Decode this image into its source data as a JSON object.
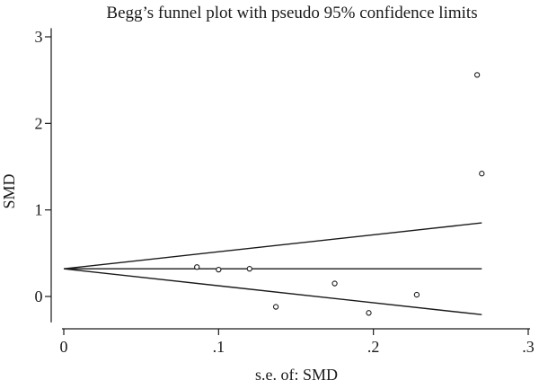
{
  "chart_data": {
    "type": "scatter",
    "title": "Begg’s funnel plot with pseudo 95% confidence limits",
    "xlabel": "s.e. of: SMD",
    "ylabel": "SMD",
    "xlim": [
      0,
      0.3
    ],
    "ylim": [
      -0.3,
      3.1
    ],
    "x_ticks": [
      0,
      0.1,
      0.2,
      0.3
    ],
    "x_tick_labels": [
      "0",
      ".1",
      ".2",
      ".3"
    ],
    "y_ticks": [
      0,
      1,
      2,
      3
    ],
    "y_tick_labels": [
      "0",
      "1",
      "2",
      "3"
    ],
    "grid": false,
    "pooled_estimate": 0.32,
    "pseudo_ci": {
      "x_start": 0,
      "x_end": 0.27,
      "upper_end": 0.85,
      "lower_end": -0.21
    },
    "points": [
      {
        "x": 0.086,
        "y": 0.34
      },
      {
        "x": 0.1,
        "y": 0.31
      },
      {
        "x": 0.12,
        "y": 0.32
      },
      {
        "x": 0.137,
        "y": -0.12
      },
      {
        "x": 0.175,
        "y": 0.15
      },
      {
        "x": 0.197,
        "y": -0.19
      },
      {
        "x": 0.228,
        "y": 0.02
      },
      {
        "x": 0.267,
        "y": 2.56
      },
      {
        "x": 0.27,
        "y": 1.42
      }
    ]
  },
  "colors": {
    "line": "#1a1a1a",
    "marker_stroke": "#1a1a1a",
    "marker_fill": "#ffffff"
  }
}
